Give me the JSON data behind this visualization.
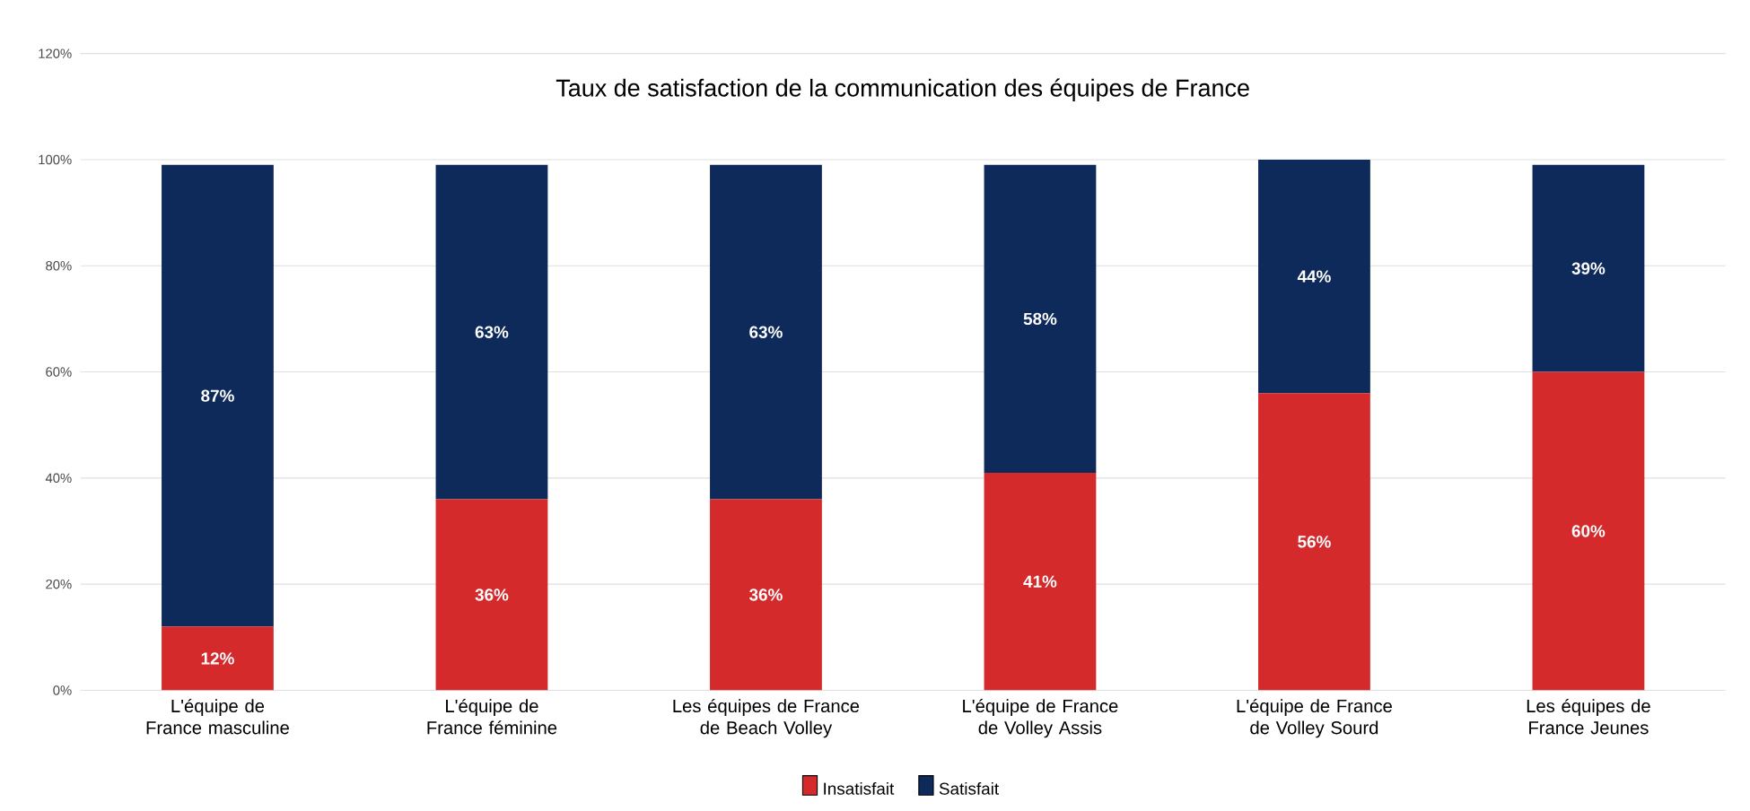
{
  "chart_data": {
    "type": "bar",
    "stacked": true,
    "title": "Taux de satisfaction de la communication des équipes de France",
    "categories": [
      "L'équipe de France masculine",
      "L'équipe de France féminine",
      "Les équipes de France de Beach Volley",
      "L'équipe de France de Volley Assis",
      "L'équipe de France de Volley Sourd",
      "Les équipes de France Jeunes"
    ],
    "series": [
      {
        "name": "Insatisfait",
        "color": "#d42a2c",
        "values": [
          12,
          36,
          36,
          41,
          56,
          60
        ],
        "value_labels": [
          "12%",
          "36%",
          "36%",
          "41%",
          "56%",
          "60%"
        ]
      },
      {
        "name": "Satisfait",
        "color": "#0e2a5a",
        "values": [
          87,
          63,
          63,
          58,
          44,
          39
        ],
        "value_labels": [
          "87%",
          "63%",
          "63%",
          "58%",
          "44%",
          "39%"
        ]
      }
    ],
    "ylim": [
      0,
      120
    ],
    "yticks": [
      {
        "value": 0,
        "label": "0%"
      },
      {
        "value": 20,
        "label": "20%"
      },
      {
        "value": 40,
        "label": "40%"
      },
      {
        "value": 60,
        "label": "60%"
      },
      {
        "value": 80,
        "label": "80%"
      },
      {
        "value": 100,
        "label": "100%"
      },
      {
        "value": 120,
        "label": "120%"
      }
    ],
    "grid": "y",
    "legend": "bottom"
  }
}
